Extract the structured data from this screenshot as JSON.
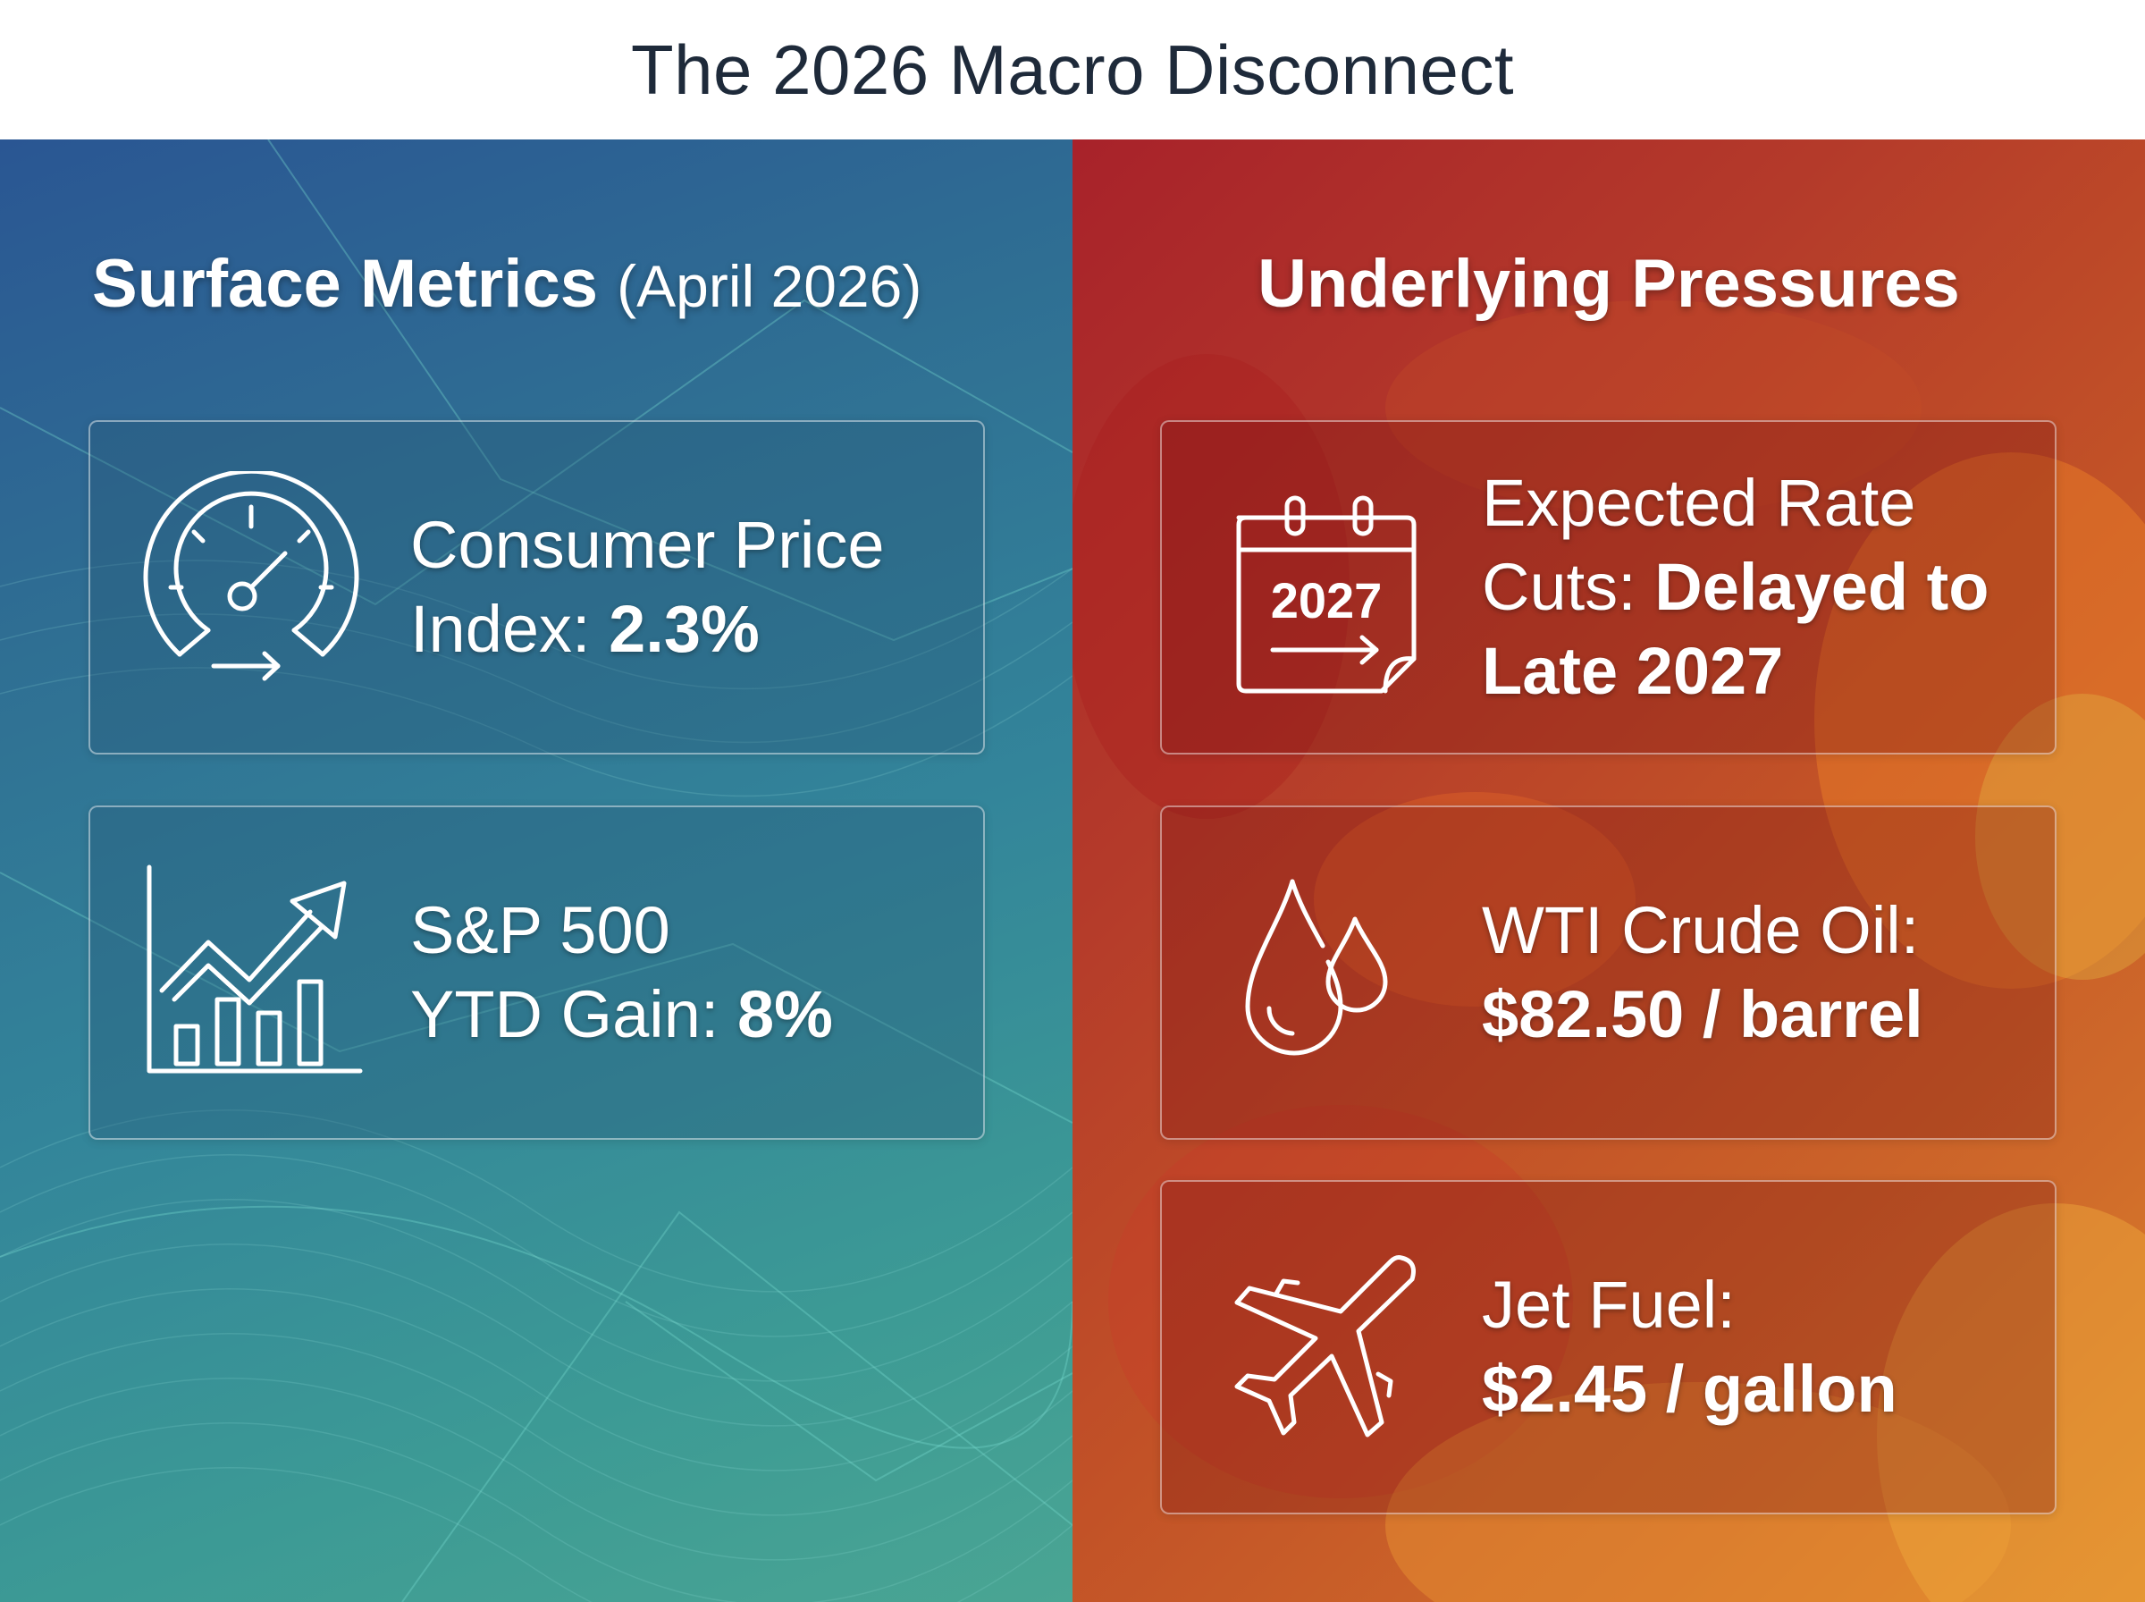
{
  "title": "The 2026 Macro Disconnect",
  "left_panel": {
    "heading_bold": "Surface Metrics",
    "heading_light": "(April 2026)",
    "cards": [
      {
        "icon": "speedometer-icon",
        "line1": "Consumer Price",
        "line2_label": "Index: ",
        "line2_value": "2.3%"
      },
      {
        "icon": "growth-chart-icon",
        "line1": "S&P 500",
        "line2_label": "YTD Gain: ",
        "line2_value": "8%"
      }
    ]
  },
  "right_panel": {
    "heading": "Underlying Pressures",
    "cards": [
      {
        "icon": "calendar-icon",
        "calendar_year": "2027",
        "line1": "Expected Rate",
        "line2_label": "Cuts: ",
        "line2_value": "Delayed to",
        "line3_value": "Late 2027"
      },
      {
        "icon": "oil-drop-icon",
        "line1": "WTI Crude Oil:",
        "line2_value": "$82.50 / barrel"
      },
      {
        "icon": "airplane-icon",
        "line1": "Jet Fuel:",
        "line2_value": "$2.45 / gallon"
      }
    ]
  },
  "colors": {
    "title_text": "#1e2a3a",
    "left_gradient_start": "#2a5693",
    "left_gradient_end": "#4aa593",
    "right_gradient_start": "#a8222a",
    "right_gradient_end": "#dd852c"
  }
}
